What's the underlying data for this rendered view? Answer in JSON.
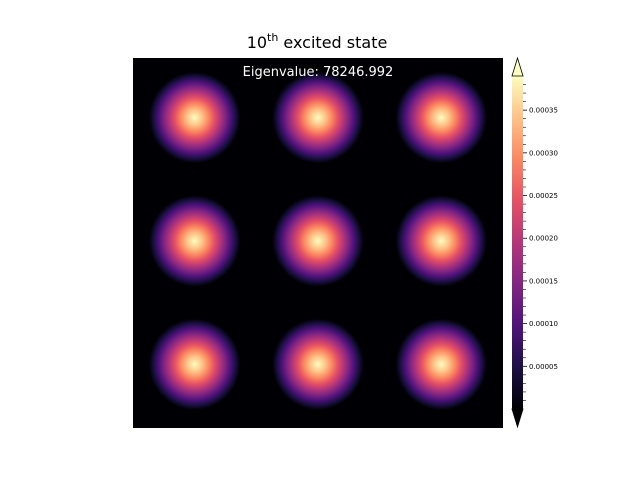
{
  "chart_data": {
    "type": "heatmap",
    "title": {
      "base": "10",
      "superscript": "th",
      "rest": " excited state"
    },
    "annotation": "Eigenvalue: 78246.992",
    "colormap": "magma",
    "colormap_stops": [
      "#000004",
      "#1c1044",
      "#4f127b",
      "#812581",
      "#b5367a",
      "#e55064",
      "#fb8761",
      "#fec287",
      "#fcfdbf"
    ],
    "grid": false,
    "grid_shape": [
      3,
      3
    ],
    "value_range": [
      0,
      0.00039
    ],
    "peak_value": 0.00039,
    "colorbar": {
      "extend": "both",
      "ticks": [
        5e-05,
        0.0001,
        0.00015,
        0.0002,
        0.00025,
        0.0003,
        0.00035
      ],
      "tick_labels": [
        "0.00005",
        "0.00010",
        "0.00015",
        "0.00020",
        "0.00025",
        "0.00030",
        "0.00035"
      ]
    }
  }
}
